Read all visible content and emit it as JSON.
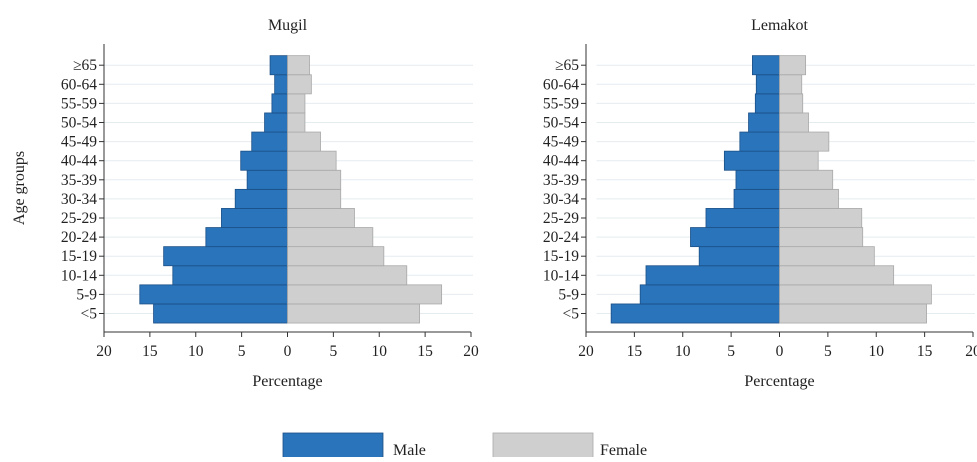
{
  "chart_data": {
    "type": "bar",
    "orientation": "horizontal",
    "layout": "population-pyramid",
    "y_axis_title": "Age groups",
    "x_axis_title": "Percentage",
    "categories": [
      "<5",
      "5-9",
      "10-14",
      "15-19",
      "20-24",
      "25-29",
      "30-34",
      "35-39",
      "40-44",
      "45-49",
      "50-54",
      "55-59",
      "60-64",
      "≥65"
    ],
    "xlim": [
      -20,
      20
    ],
    "x_ticks": [
      -20,
      -15,
      -10,
      -5,
      0,
      5,
      10,
      15,
      20
    ],
    "x_tick_labels": [
      "20",
      "15",
      "10",
      "5",
      "0",
      "5",
      "10",
      "15",
      "20"
    ],
    "grid": "horizontal lines",
    "legend_position": "bottom",
    "legend": [
      {
        "name": "Male",
        "color": "#2a74bb"
      },
      {
        "name": "Female",
        "color": "#cfcfcf"
      }
    ],
    "panels": [
      {
        "title": "Mugil",
        "series": [
          {
            "name": "Male",
            "values": [
              14.6,
              16.1,
              12.5,
              13.5,
              8.9,
              7.2,
              5.7,
              4.4,
              5.1,
              3.9,
              2.5,
              1.7,
              1.4,
              1.9
            ]
          },
          {
            "name": "Female",
            "values": [
              14.4,
              16.8,
              13.0,
              10.5,
              9.3,
              7.3,
              5.8,
              5.8,
              5.3,
              3.6,
              1.9,
              1.9,
              2.6,
              2.4
            ]
          }
        ]
      },
      {
        "title": "Lemakot",
        "series": [
          {
            "name": "Male",
            "values": [
              17.4,
              14.4,
              13.8,
              8.3,
              9.2,
              7.6,
              4.7,
              4.5,
              5.7,
              4.1,
              3.2,
              2.5,
              2.4,
              2.8
            ]
          },
          {
            "name": "Female",
            "values": [
              15.2,
              15.7,
              11.8,
              9.8,
              8.6,
              8.5,
              6.1,
              5.5,
              4.0,
              5.1,
              3.0,
              2.4,
              2.3,
              2.7
            ]
          }
        ]
      }
    ]
  }
}
